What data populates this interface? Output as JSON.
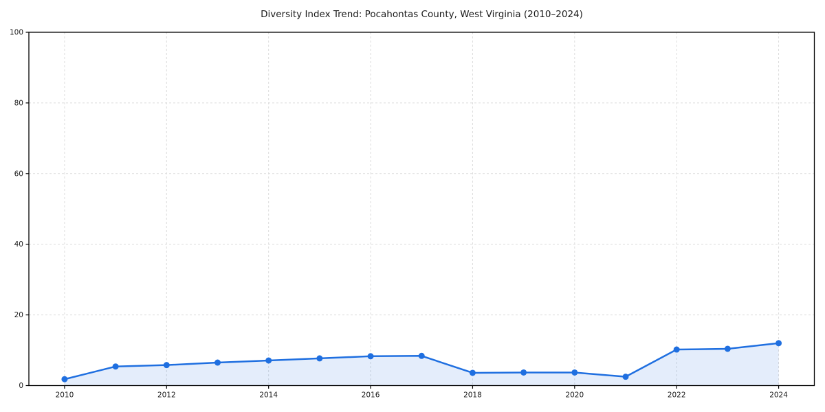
{
  "chart_data": {
    "type": "line",
    "title": "Diversity Index Trend: Pocahontas County, West Virginia (2010–2024)",
    "x": [
      2010,
      2011,
      2012,
      2013,
      2014,
      2015,
      2016,
      2017,
      2018,
      2019,
      2020,
      2021,
      2022,
      2023,
      2024
    ],
    "values": [
      1.8,
      5.4,
      5.8,
      6.5,
      7.1,
      7.7,
      8.3,
      8.4,
      3.6,
      3.7,
      3.7,
      2.5,
      10.2,
      10.4,
      12.0
    ],
    "xlabel": "",
    "ylabel": "",
    "xlim": [
      2009.3,
      2024.7
    ],
    "ylim": [
      0,
      100
    ],
    "xticks": [
      2010,
      2012,
      2014,
      2016,
      2018,
      2020,
      2022,
      2024
    ],
    "yticks": [
      0,
      20,
      40,
      60,
      80,
      100
    ],
    "grid": true,
    "grid_style": "dashed",
    "legend": "none",
    "colors": {
      "line": "#1f6fe0",
      "marker": "#1f6fe0",
      "area_fill": "rgba(31,111,224,0.12)",
      "grid": "#dcdcdc",
      "spine": "#000000",
      "tick_label": "#1a1a1a",
      "title": "#1a1a1a"
    }
  }
}
